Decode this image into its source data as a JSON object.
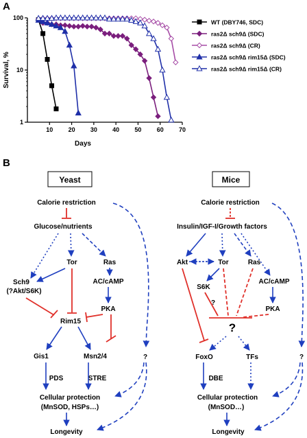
{
  "panel_a": {
    "label": "A",
    "chart_data": {
      "type": "line",
      "xlabel": "Days",
      "ylabel": "Survival, %",
      "xlim": [
        0,
        70
      ],
      "ylim": [
        1,
        100
      ],
      "log_y": true,
      "x_ticks": [
        "10",
        "20",
        "30",
        "40",
        "50",
        "60",
        "70"
      ],
      "y_ticks": [
        "1",
        "10",
        "100"
      ],
      "legend_position": "right",
      "series": [
        {
          "name_html": "WT (DBY746, SDC)",
          "label": "WT (DBY746, SDC)",
          "color": "#000000",
          "marker": "square-filled",
          "x": [
            5,
            7,
            9,
            11,
            13
          ],
          "y": [
            92,
            50,
            16,
            5,
            1.8
          ]
        },
        {
          "name_html": "ras2Δ sch9Δ (SDC)",
          "label": "ras2Δ sch9Δ (SDC)",
          "color": "#7b1f7d",
          "marker": "diamond-filled",
          "x": [
            5,
            7,
            9,
            11,
            13,
            15,
            17,
            19,
            21,
            23,
            25,
            27,
            29,
            31,
            33,
            35,
            37,
            39,
            41,
            43,
            45,
            47,
            49,
            51,
            53,
            55,
            57,
            59
          ],
          "y": [
            92,
            80,
            80,
            75,
            75,
            72,
            72,
            70,
            68,
            68,
            70,
            68,
            68,
            65,
            60,
            50,
            50,
            45,
            45,
            45,
            40,
            30,
            25,
            20,
            15,
            7,
            3,
            1.3
          ]
        },
        {
          "name_html": "ras2Δ sch9Δ (CR)",
          "label": "ras2Δ sch9Δ (CR)",
          "color": "#a64ca6",
          "marker": "diamond-open",
          "x": [
            5,
            7,
            9,
            11,
            13,
            15,
            17,
            19,
            21,
            23,
            25,
            27,
            29,
            31,
            33,
            35,
            37,
            39,
            41,
            43,
            45,
            47,
            49,
            51,
            53,
            55,
            57,
            59,
            61,
            63,
            65,
            67
          ],
          "y": [
            95,
            98,
            98,
            98,
            98,
            98,
            98,
            98,
            98,
            98,
            98,
            98,
            98,
            98,
            98,
            98,
            98,
            98,
            98,
            98,
            98,
            98,
            98,
            95,
            92,
            88,
            85,
            80,
            72,
            65,
            40,
            14
          ]
        },
        {
          "name_html": "ras2Δ sch9Δ rim15Δ (SDC)",
          "label": "ras2Δ sch9Δ rim15Δ (SDC)",
          "color": "#1f2fa8",
          "marker": "triangle-filled",
          "x": [
            5,
            7,
            9,
            11,
            13,
            15,
            17,
            19,
            21,
            23
          ],
          "y": [
            90,
            85,
            80,
            75,
            70,
            65,
            55,
            30,
            12,
            1.5
          ]
        },
        {
          "name_html": "ras2Δ sch9Δ rim15Δ (CR)",
          "label": "ras2Δ sch9Δ rim15Δ (CR)",
          "color": "#1f2fa8",
          "marker": "triangle-open",
          "x": [
            5,
            7,
            9,
            11,
            13,
            15,
            17,
            19,
            21,
            23,
            25,
            27,
            29,
            31,
            33,
            35,
            37,
            39,
            41,
            43,
            45,
            47,
            49,
            51,
            53,
            55,
            57,
            59,
            61,
            63,
            65
          ],
          "y": [
            98,
            98,
            98,
            98,
            100,
            100,
            100,
            100,
            100,
            100,
            100,
            100,
            100,
            100,
            100,
            100,
            95,
            95,
            95,
            95,
            95,
            90,
            85,
            80,
            70,
            50,
            40,
            25,
            10,
            3,
            1.1
          ]
        }
      ]
    }
  },
  "panel_b": {
    "label": "B",
    "yeast": {
      "title": "Yeast",
      "calorie_restriction": "Calorie restriction",
      "glucose": "Glucose/nutrients",
      "tor": "Tor",
      "ras": "Ras",
      "sch9": "Sch9",
      "sch9_sub": "(?Akt/S6K)",
      "ac_camp": "AC/cAMP",
      "pka": "PKA",
      "rim15": "Rim15",
      "gis1": "Gis1",
      "msn": "Msn2/4",
      "pds": "PDS",
      "stre": "STRE",
      "question": "?",
      "protection": "Cellular protection",
      "protection_sub": "(MnSOD, HSPs…)",
      "longevity": "Longevity"
    },
    "mice": {
      "title": "Mice",
      "calorie_restriction": "Calorie restriction",
      "insulin": "Insulin/IGF-I/Growth factors",
      "akt": "Akt",
      "tor": "Tor",
      "ras": "Ras",
      "s6k": "S6K",
      "ac_camp": "AC/cAMP",
      "pka": "PKA",
      "center_question": "?",
      "small_question": "?",
      "foxo": "FoxO",
      "tfs": "TFs",
      "dbe": "DBE",
      "question": "?",
      "protection": "Cellular protection",
      "protection_sub": "(MnSOD…)",
      "longevity": "Longevity"
    },
    "colors": {
      "activation": "#1f3fbf",
      "inhibition": "#e0302a",
      "text": "#000000"
    }
  }
}
